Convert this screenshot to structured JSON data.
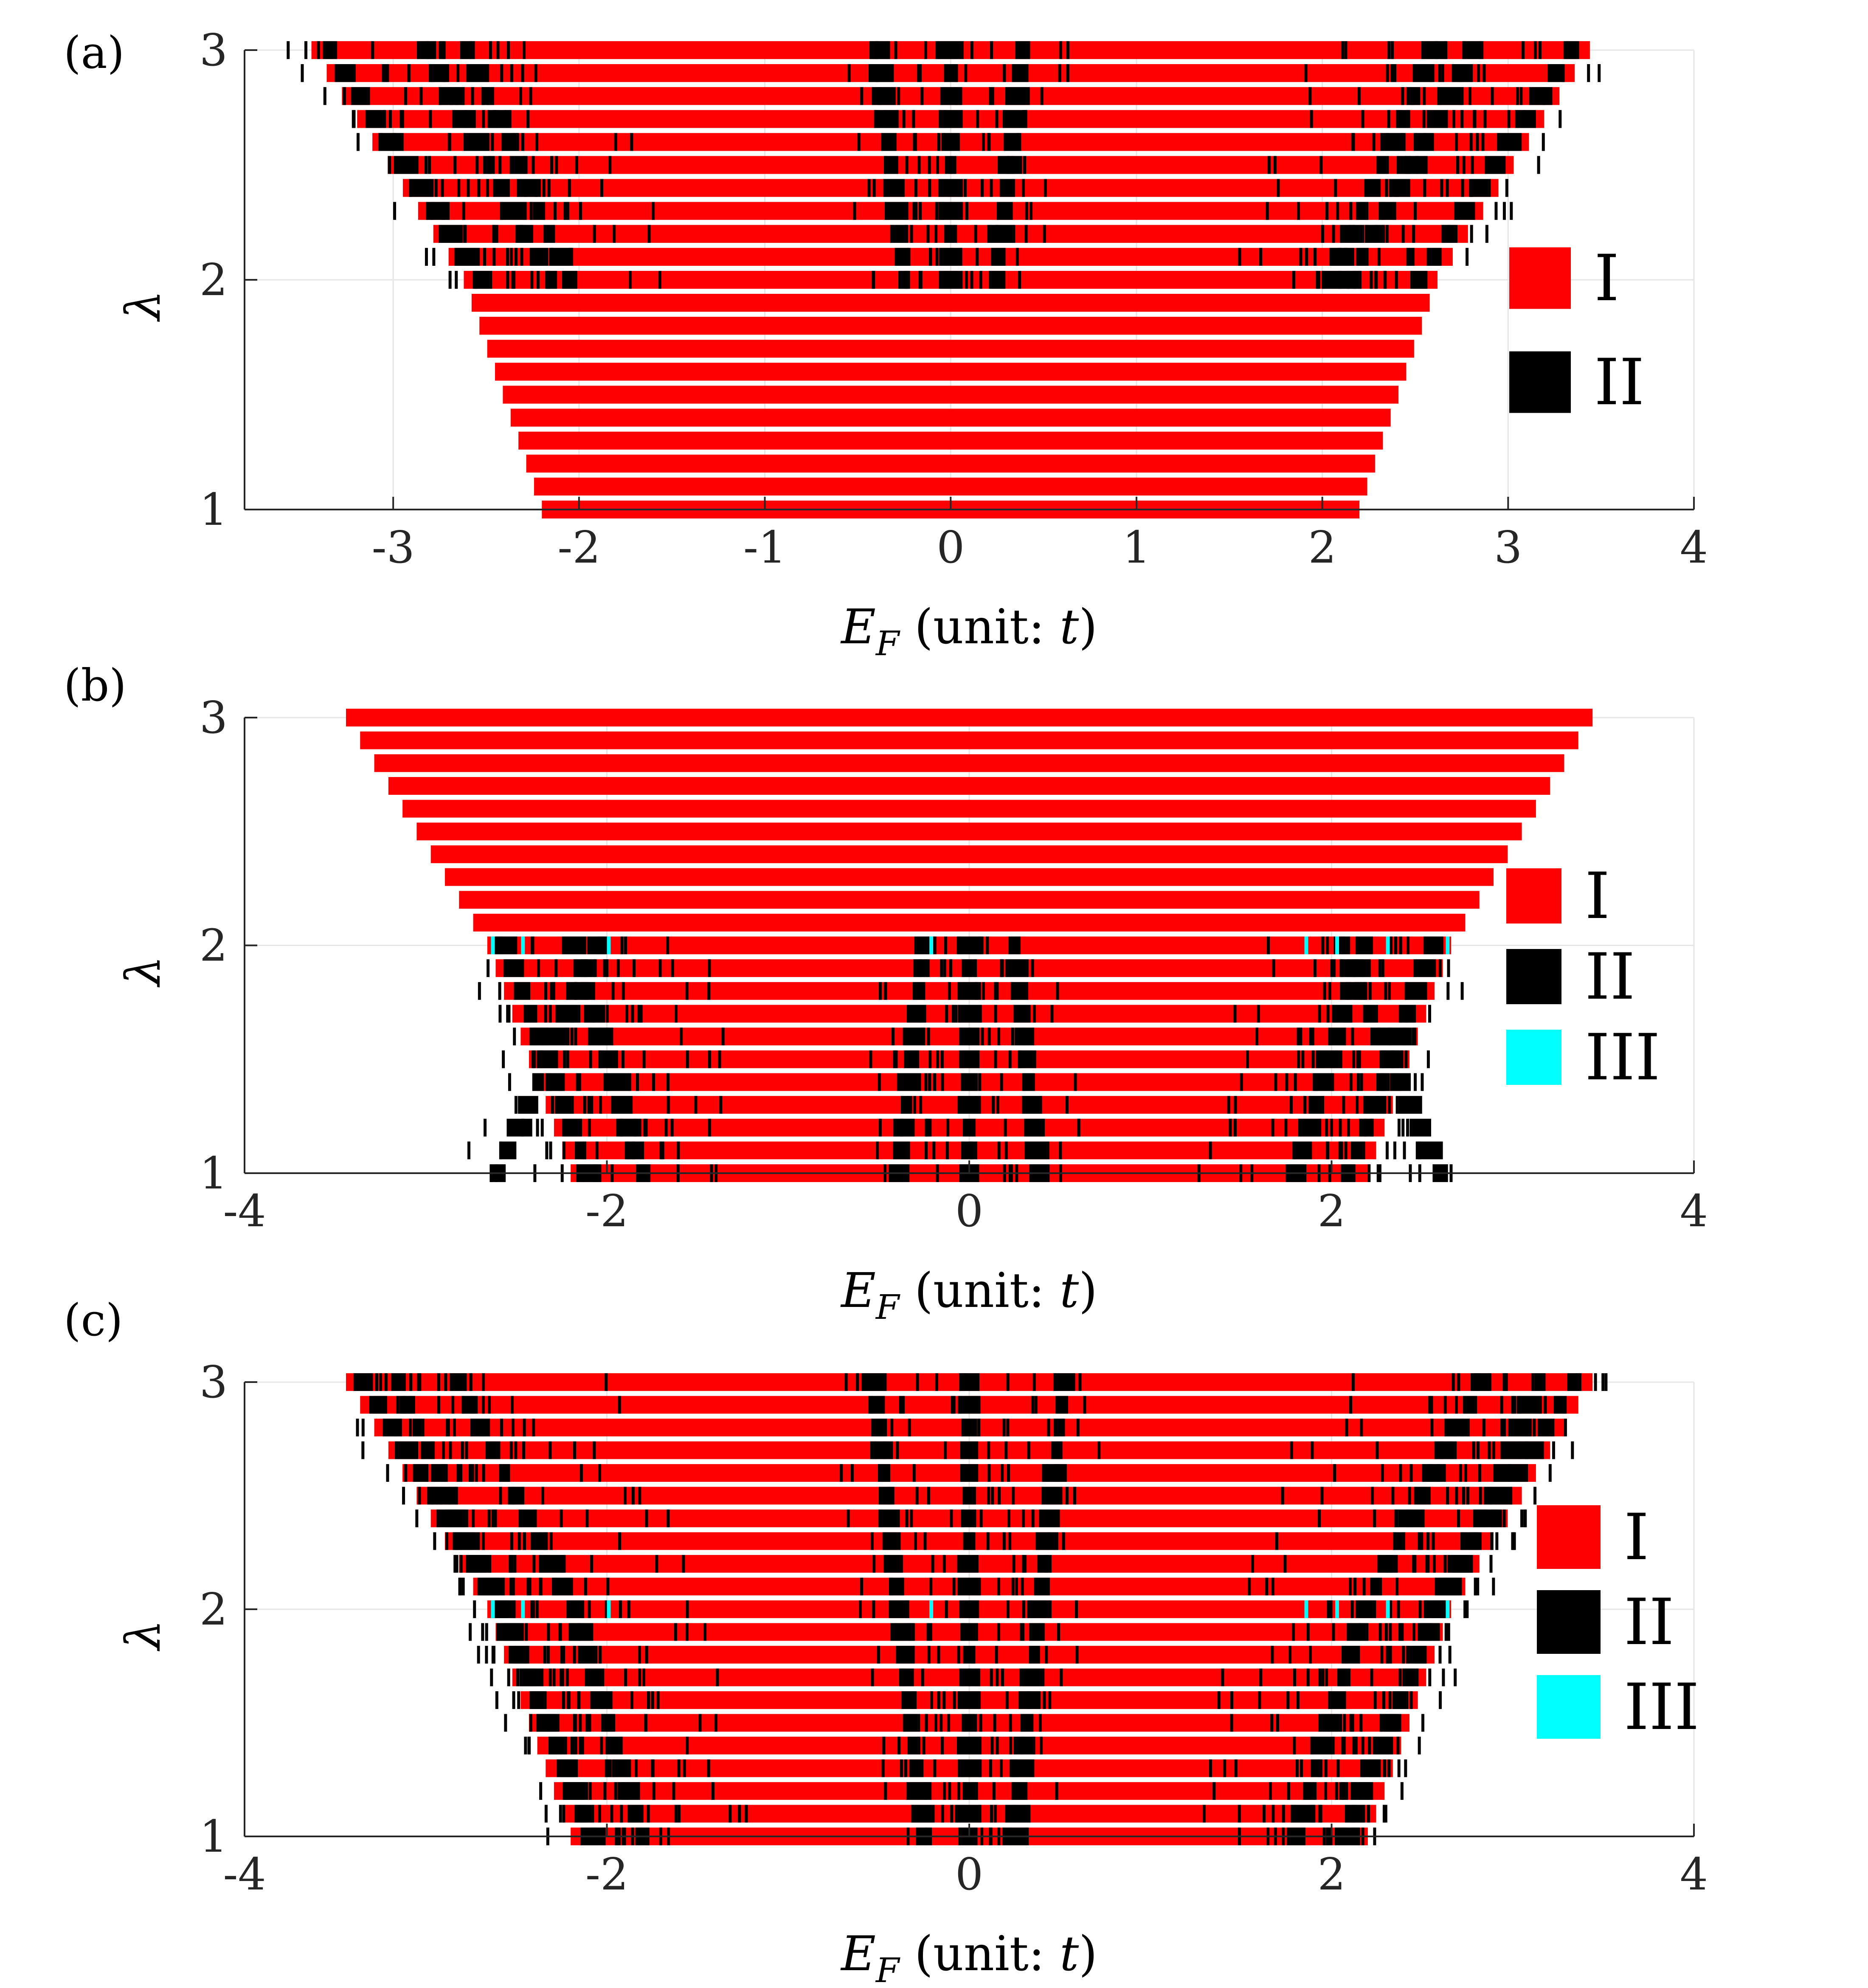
{
  "figure": {
    "colors": {
      "I": "#ff0000",
      "II": "#000000",
      "III": "#00ffff",
      "grid": "#e6e6e6",
      "axis": "#262626"
    },
    "segment_legend": "Each row is a horizontal bar spanning the allowed E_F range at that lambda; colored segments classify regions as I (red), II (black), III (cyan)."
  },
  "chart_data": [
    {
      "id": "a",
      "type": "bar",
      "orientation": "horizontal-range",
      "panel_label": "(a)",
      "xlabel_main": "E",
      "xlabel_sub": "F",
      "xlabel_rest": " (unit: ",
      "xlabel_unit": "t",
      "xlabel_close": ")",
      "ylabel": "λ",
      "xlim": [
        -3.8,
        4
      ],
      "ylim": [
        1,
        3
      ],
      "xticks": [
        -3,
        -2,
        -1,
        0,
        1,
        2,
        3,
        4
      ],
      "xtick_labels": [
        "-3",
        "-2",
        "-1",
        "0",
        "1",
        "2",
        "3",
        "4"
      ],
      "yticks": [
        1,
        2,
        3
      ],
      "ytick_labels": [
        "1",
        "2",
        "3"
      ],
      "legend": [
        {
          "key": "I",
          "label": "I"
        },
        {
          "key": "II",
          "label": "II"
        }
      ],
      "rows_lambda_min": 1.0,
      "rows_lambda_max": 3.0,
      "rows_count": 21,
      "half_width_at_lambda": {
        "lambda": [
          1.0,
          2.0,
          3.0
        ],
        "half_width": [
          2.2,
          2.62,
          3.44
        ]
      },
      "segmented_lambda_range": [
        2.0,
        3.0
      ],
      "black_band_centers_neg": [
        -2.05,
        -0.25,
        0.0
      ],
      "black_band_centers_pos": [
        0.25,
        2.05
      ],
      "band_drift_per_lambda": 0.55,
      "cyan_at_lambda": []
    },
    {
      "id": "b",
      "type": "bar",
      "orientation": "horizontal-range",
      "panel_label": "(b)",
      "xlabel_main": "E",
      "xlabel_sub": "F",
      "xlabel_rest": " (unit: ",
      "xlabel_unit": "t",
      "xlabel_close": ")",
      "ylabel": "λ",
      "xlim": [
        -4,
        4
      ],
      "ylim": [
        1,
        3
      ],
      "xticks": [
        -4,
        -2,
        0,
        2,
        4
      ],
      "xtick_labels": [
        "-4",
        "-2",
        "0",
        "2",
        "4"
      ],
      "yticks": [
        1,
        2,
        3
      ],
      "ytick_labels": [
        "1",
        "2",
        "3"
      ],
      "legend": [
        {
          "key": "I",
          "label": "I"
        },
        {
          "key": "II",
          "label": "II"
        },
        {
          "key": "III",
          "label": "III"
        }
      ],
      "rows_lambda_min": 1.0,
      "rows_lambda_max": 3.0,
      "rows_count": 21,
      "half_width_at_lambda": {
        "lambda": [
          1.0,
          2.0,
          3.0
        ],
        "half_width": [
          2.2,
          2.66,
          3.44
        ]
      },
      "segmented_lambda_range": [
        1.0,
        2.0
      ],
      "black_band_centers_neg": [
        -2.05,
        -0.25,
        0.0
      ],
      "black_band_centers_pos": [
        0.25,
        2.05
      ],
      "band_drift_per_lambda": -0.55,
      "cyan_at_lambda": [
        2.0
      ]
    },
    {
      "id": "c",
      "type": "bar",
      "orientation": "horizontal-range",
      "panel_label": "(c)",
      "xlabel_main": "E",
      "xlabel_sub": "F",
      "xlabel_rest": " (unit: ",
      "xlabel_unit": "t",
      "xlabel_close": ")",
      "ylabel": "λ",
      "xlim": [
        -4,
        4
      ],
      "ylim": [
        1,
        3
      ],
      "xticks": [
        -4,
        -2,
        0,
        2,
        4
      ],
      "xtick_labels": [
        "-4",
        "-2",
        "0",
        "2",
        "4"
      ],
      "yticks": [
        1,
        2,
        3
      ],
      "ytick_labels": [
        "1",
        "2",
        "3"
      ],
      "legend": [
        {
          "key": "I",
          "label": "I"
        },
        {
          "key": "II",
          "label": "II"
        },
        {
          "key": "III",
          "label": "III"
        }
      ],
      "rows_lambda_min": 1.0,
      "rows_lambda_max": 3.0,
      "rows_count": 21,
      "half_width_at_lambda": {
        "lambda": [
          1.0,
          2.0,
          3.0
        ],
        "half_width": [
          2.2,
          2.66,
          3.44
        ]
      },
      "segmented_lambda_range": [
        1.0,
        3.0
      ],
      "black_band_centers_neg": [
        -2.05,
        -0.25,
        0.0
      ],
      "black_band_centers_pos": [
        0.25,
        2.05
      ],
      "band_drift_per_lambda": 0.55,
      "cyan_at_lambda": [
        2.0
      ]
    }
  ]
}
